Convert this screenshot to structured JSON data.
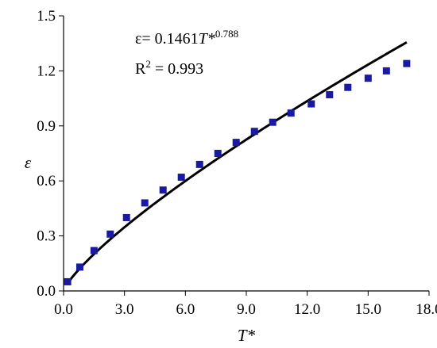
{
  "chart_data": {
    "type": "scatter",
    "xlabel": "T*",
    "ylabel": "ε",
    "xlim": [
      0,
      18
    ],
    "ylim": [
      0,
      1.5
    ],
    "x_ticks": [
      "0.0",
      "3.0",
      "6.0",
      "9.0",
      "12.0",
      "15.0",
      "18.0"
    ],
    "y_ticks": [
      "0.0",
      "0.3",
      "0.6",
      "0.9",
      "1.2",
      "1.5"
    ],
    "grid": false,
    "legend": "none",
    "points": {
      "x": [
        0.2,
        0.8,
        1.5,
        2.3,
        3.1,
        4.0,
        4.9,
        5.8,
        6.7,
        7.6,
        8.5,
        9.4,
        10.3,
        11.2,
        12.2,
        13.1,
        14.0,
        15.0,
        15.9,
        16.9
      ],
      "y": [
        0.05,
        0.13,
        0.22,
        0.31,
        0.4,
        0.48,
        0.55,
        0.62,
        0.69,
        0.75,
        0.81,
        0.87,
        0.92,
        0.97,
        1.02,
        1.07,
        1.11,
        1.16,
        1.2,
        1.24
      ],
      "marker": "square",
      "color": "#1a1aa0"
    },
    "fit": {
      "coefficient": 0.1461,
      "exponent": 0.788,
      "x_range": [
        0.2,
        16.9
      ],
      "color": "#000000"
    },
    "annotations": {
      "equation_prefix": "ε= 0.1461",
      "equation_var": "T*",
      "equation_exp": "0.788",
      "r2_prefix": "R",
      "r2_exp": "2",
      "r2_value": " = 0.993"
    }
  }
}
